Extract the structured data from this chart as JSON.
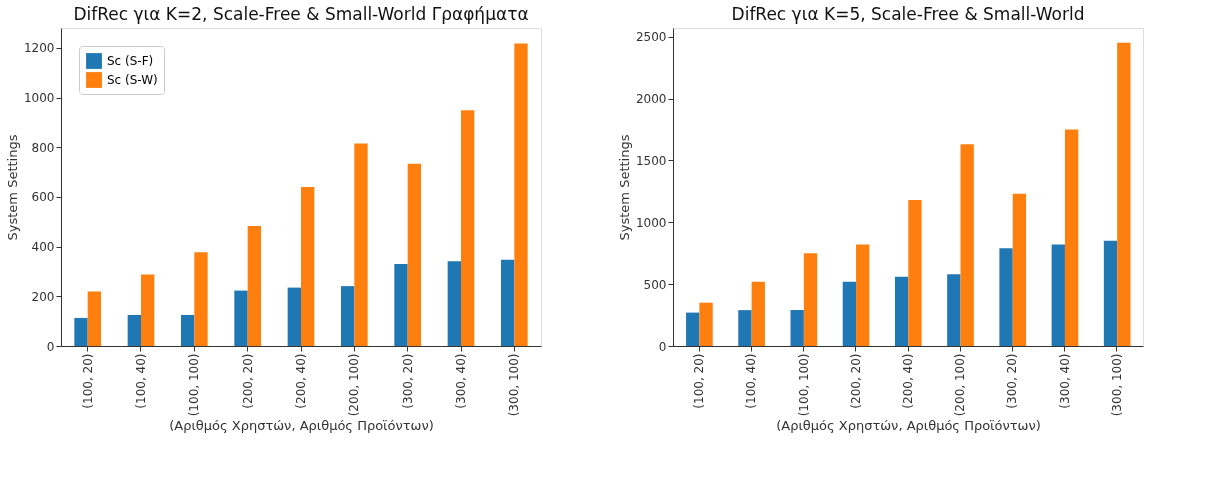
{
  "chart_data": [
    {
      "type": "bar",
      "title": "DifRec για K=2, Scale-Free & Small-World Γραφήματα",
      "xlabel": "(Αριθμός Χρηστών, Αριθμός Προϊόντων)",
      "ylabel": "System Settings",
      "categories": [
        "(100, 20)",
        "(100, 40)",
        "(100, 100)",
        "(200, 20)",
        "(200, 40)",
        "(200, 100)",
        "(300, 20)",
        "(300, 40)",
        "(300, 100)"
      ],
      "series": [
        {
          "name": "Sc (S-F)",
          "color": "#1f77b4",
          "values": [
            113,
            125,
            125,
            223,
            235,
            241,
            330,
            341,
            347
          ]
        },
        {
          "name": "Sc (S-W)",
          "color": "#ff7f0e",
          "values": [
            219,
            288,
            377,
            483,
            640,
            815,
            734,
            949,
            1218
          ]
        }
      ],
      "ylim": [
        0,
        1280
      ],
      "yticks": [
        0,
        200,
        400,
        600,
        800,
        1000,
        1200
      ],
      "grid": false,
      "legend": "top left"
    },
    {
      "type": "bar",
      "title": "DifRec για K=5, Scale-Free & Small-World",
      "xlabel": "(Αριθμός Χρηστών, Αριθμός Προϊόντων)",
      "ylabel": "System Settings",
      "categories": [
        "(100, 20)",
        "(100, 40)",
        "(100, 100)",
        "(200, 20)",
        "(200, 40)",
        "(200, 100)",
        "(300, 20)",
        "(300, 40)",
        "(300, 100)"
      ],
      "series": [
        {
          "name": "Sc (S-F)",
          "color": "#1f77b4",
          "values": [
            270,
            290,
            290,
            520,
            560,
            580,
            790,
            820,
            850
          ]
        },
        {
          "name": "Sc (S-W)",
          "color": "#ff7f0e",
          "values": [
            350,
            520,
            750,
            820,
            1180,
            1630,
            1230,
            1750,
            2450
          ]
        }
      ],
      "ylim": [
        0,
        2570
      ],
      "yticks": [
        0,
        500,
        1000,
        1500,
        2000,
        2500
      ],
      "grid": false,
      "legend": "top left"
    }
  ]
}
